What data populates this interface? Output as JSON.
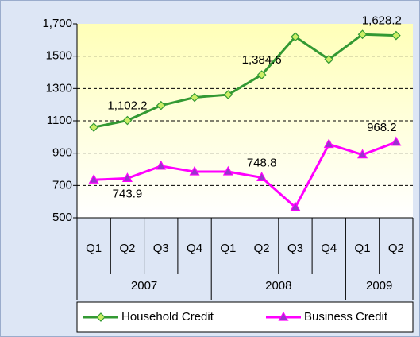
{
  "chart_data": {
    "type": "line",
    "categories": [
      "Q1",
      "Q2",
      "Q3",
      "Q4",
      "Q1",
      "Q2",
      "Q3",
      "Q4",
      "Q1",
      "Q2"
    ],
    "groups": [
      {
        "label": "2007",
        "span": 4
      },
      {
        "label": "2008",
        "span": 4
      },
      {
        "label": "2009",
        "span": 2
      }
    ],
    "series": [
      {
        "name": "Household Credit",
        "color": "#339933",
        "marker_fill": "#ccee66",
        "marker": "diamond",
        "values": [
          1060,
          1102.2,
          1195,
          1245,
          1262,
          1384.6,
          1620,
          1480,
          1635,
          1628.2
        ],
        "value_labels": [
          null,
          "1,102.2",
          null,
          null,
          null,
          "1,384.6",
          null,
          null,
          null,
          "1,628.2"
        ]
      },
      {
        "name": "Business Credit",
        "color": "#ff00ff",
        "marker_fill": "#9933cc",
        "marker": "triangle",
        "values": [
          735,
          743.9,
          820,
          785,
          785,
          748.8,
          565,
          955,
          890,
          968.2
        ],
        "value_labels": [
          null,
          "743.9",
          null,
          null,
          null,
          "748.8",
          null,
          null,
          null,
          "968.2"
        ]
      }
    ],
    "ylim": [
      500,
      1700
    ],
    "yticks": [
      500,
      700,
      900,
      1100,
      1300,
      1500,
      {
        "value": 1700,
        "label": "1,700"
      }
    ],
    "grid": true,
    "legend": "bottom"
  }
}
